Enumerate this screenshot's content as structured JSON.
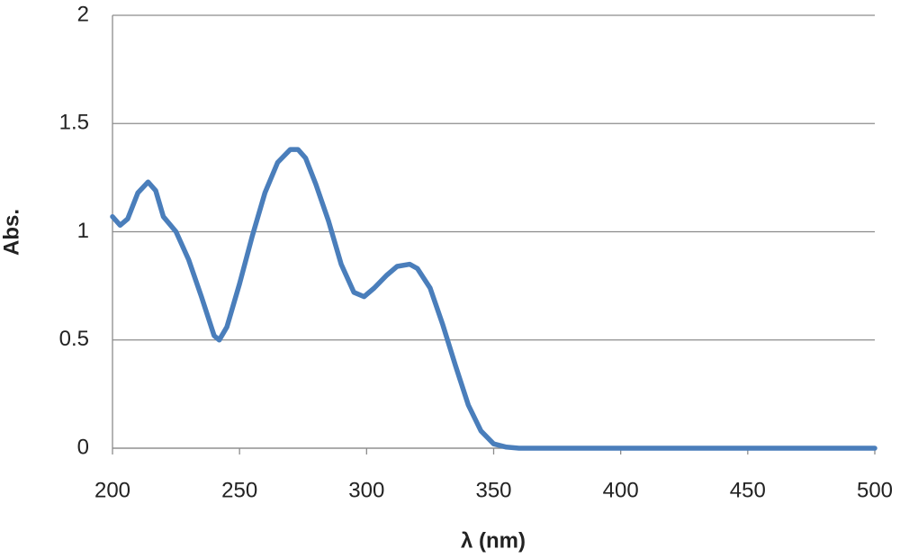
{
  "chart_data": {
    "type": "line",
    "x_label": "λ (nm)",
    "y_label": "Abs.",
    "x": [
      200,
      203,
      206,
      210,
      214,
      217,
      220,
      225,
      230,
      235,
      240,
      242,
      245,
      250,
      255,
      260,
      265,
      270,
      273,
      276,
      280,
      285,
      290,
      295,
      299,
      303,
      308,
      312,
      317,
      320,
      325,
      330,
      335,
      340,
      345,
      350,
      355,
      360,
      400,
      450,
      500
    ],
    "values": [
      1.07,
      1.03,
      1.06,
      1.18,
      1.23,
      1.19,
      1.07,
      1.0,
      0.87,
      0.7,
      0.52,
      0.5,
      0.56,
      0.76,
      0.98,
      1.18,
      1.32,
      1.38,
      1.38,
      1.34,
      1.22,
      1.05,
      0.85,
      0.72,
      0.7,
      0.74,
      0.8,
      0.84,
      0.85,
      0.83,
      0.74,
      0.57,
      0.38,
      0.2,
      0.08,
      0.02,
      0.005,
      0,
      0,
      0,
      0
    ],
    "color": "#4a7ebb",
    "xlim": [
      200,
      500
    ],
    "xticks": [
      200,
      250,
      300,
      350,
      400,
      450,
      500
    ],
    "ylim": [
      0,
      2
    ],
    "yticks": [
      0,
      0.5,
      1,
      1.5,
      2
    ],
    "grid": true
  }
}
